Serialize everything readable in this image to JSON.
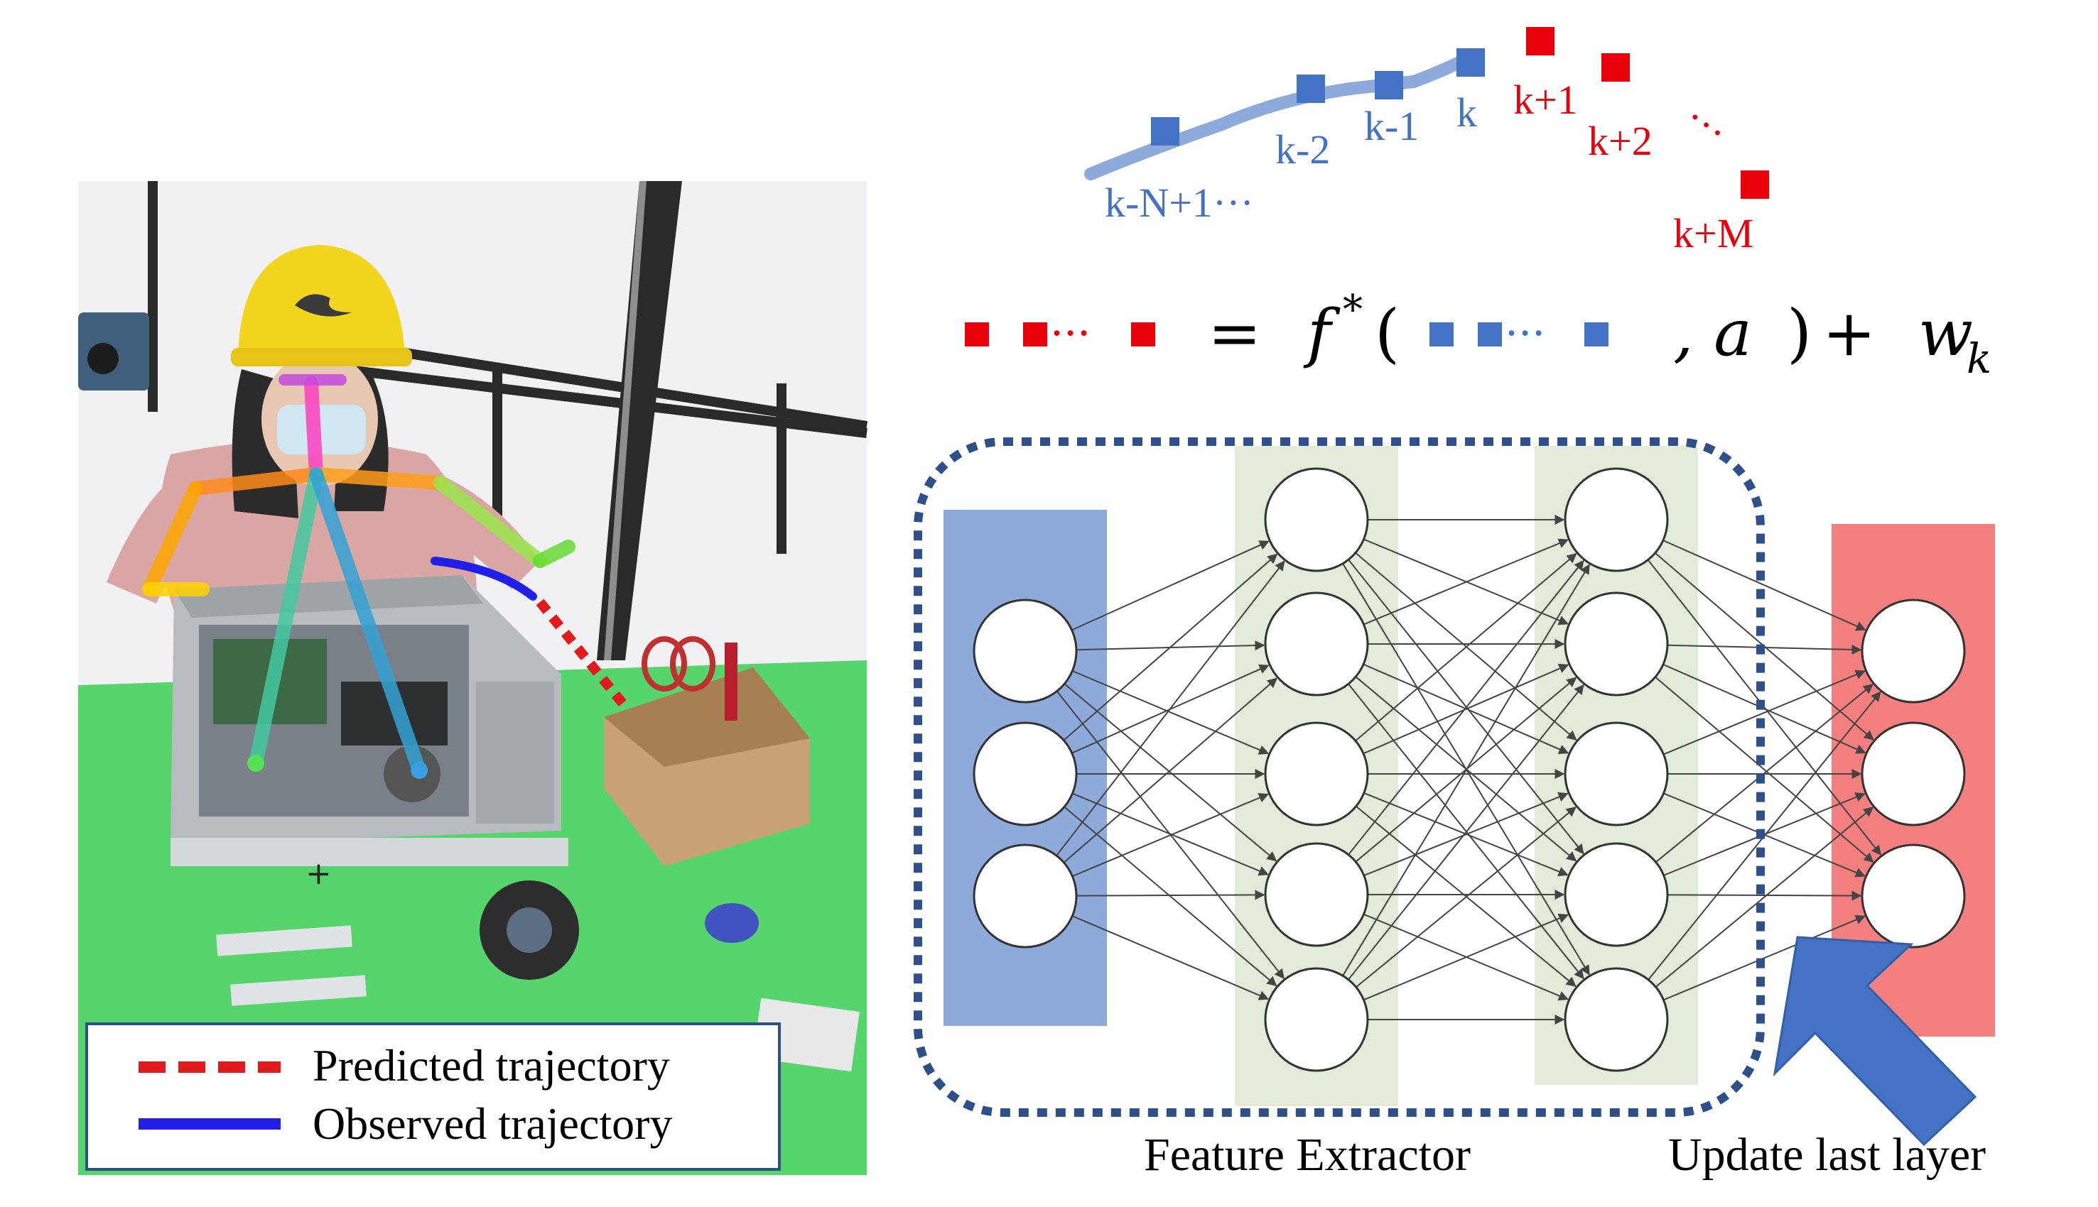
{
  "trajectory": {
    "observed_labels": [
      "k-N+1···",
      "k-2",
      "k-1",
      "k"
    ],
    "predicted_labels": [
      "k+1",
      "k+2",
      "···",
      "k+M"
    ]
  },
  "equation": {
    "red_dots": "···",
    "equals": "=",
    "func": "f",
    "star": "*",
    "open_paren": "(",
    "blue_dots": "···",
    "comma_a": ", a",
    "close_paren": ")",
    "plus": "+",
    "w": "w",
    "k_sub": "k"
  },
  "legend": {
    "predicted": "Predicted trajectory",
    "observed": "Observed trajectory"
  },
  "network": {
    "feature_extractor_label": "Feature Extractor",
    "update_label": "Update last layer"
  },
  "colors": {
    "observed_blue": "#4472c4",
    "predicted_red": "#e8000b",
    "input_layer": "#8eaadb",
    "hidden_layer": "#e2ecd9",
    "output_layer": "#f47f7f",
    "dashed_box": "#2f4f8a",
    "arrow": "#4472c4",
    "legend_red": "#e31a1c",
    "legend_blue": "#1f1fe8"
  }
}
